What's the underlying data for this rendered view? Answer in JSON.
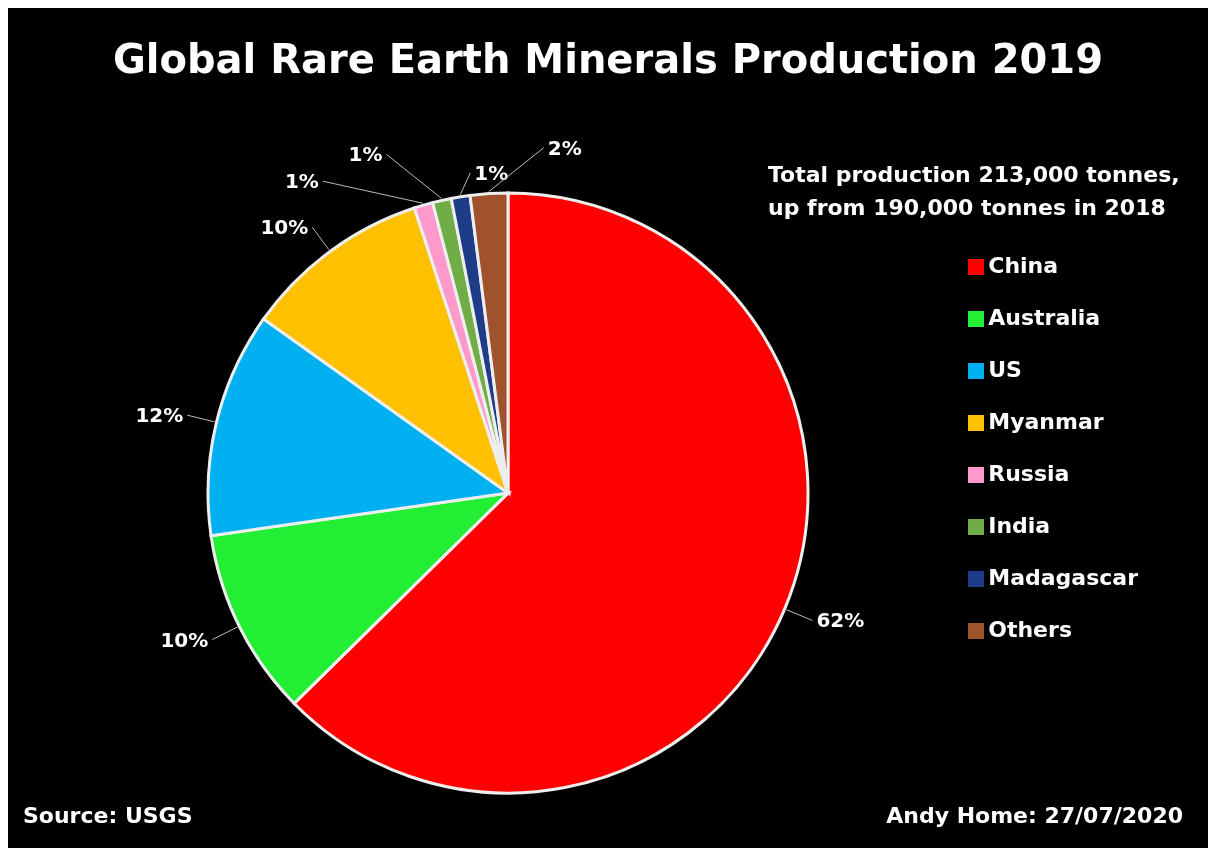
{
  "chart_data": {
    "type": "pie",
    "title": "Global Rare Earth Minerals Production 2019",
    "categories": [
      "China",
      "Australia",
      "US",
      "Myanmar",
      "Russia",
      "India",
      "Madagascar",
      "Others"
    ],
    "values": [
      62,
      10,
      12,
      10,
      1,
      1,
      1,
      2
    ],
    "colors": [
      "#ff0000",
      "#22ee33",
      "#00b0f0",
      "#ffc000",
      "#ff99cc",
      "#70ad47",
      "#1f3c88",
      "#a0522d"
    ],
    "value_labels": [
      "62%",
      "10%",
      "12%",
      "10%",
      "1%",
      "1%",
      "1%",
      "2%"
    ],
    "legend": "right",
    "annotations": [
      "Total production 213,000 tonnes, up from 190,000 tonnes in 2018",
      "Source: USGS",
      "Andy Home: 27/07/2020"
    ]
  }
}
